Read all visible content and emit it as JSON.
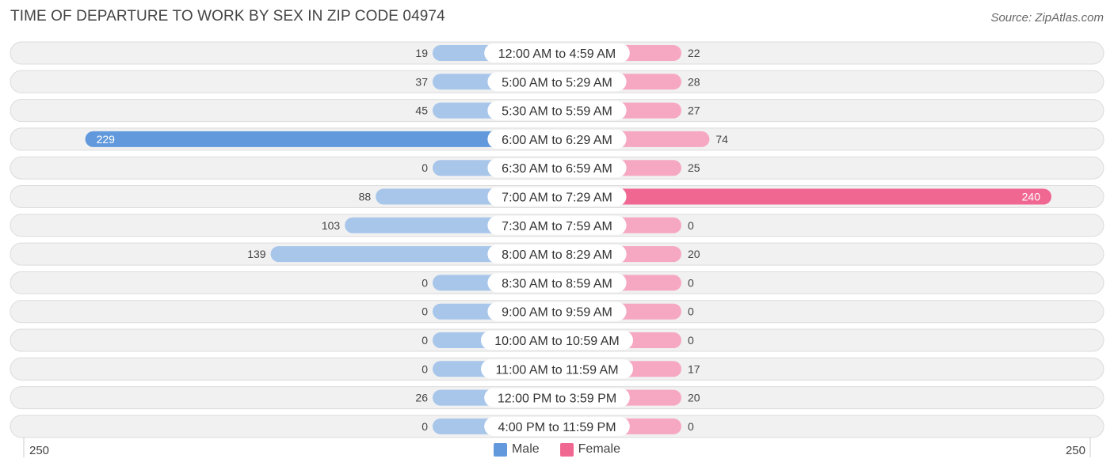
{
  "header": {
    "title": "TIME OF DEPARTURE TO WORK BY SEX IN ZIP CODE 04974",
    "source": "Source: ZipAtlas.com"
  },
  "legend": {
    "male_label": "Male",
    "female_label": "Female"
  },
  "axis": {
    "left_label": "250",
    "right_label": "250"
  },
  "colors": {
    "male_light": "#a7c6ea",
    "male_dark": "#6199dc",
    "female_light": "#f6a8c3",
    "female_dark": "#f06792",
    "row_bg": "#f1f1f1",
    "row_border": "#dcdcdc"
  },
  "chart_data": {
    "type": "bar",
    "orientation": "horizontal-diverging",
    "title": "TIME OF DEPARTURE TO WORK BY SEX IN ZIP CODE 04974",
    "xlim": [
      -250,
      250
    ],
    "categories": [
      "12:00 AM to 4:59 AM",
      "5:00 AM to 5:29 AM",
      "5:30 AM to 5:59 AM",
      "6:00 AM to 6:29 AM",
      "6:30 AM to 6:59 AM",
      "7:00 AM to 7:29 AM",
      "7:30 AM to 7:59 AM",
      "8:00 AM to 8:29 AM",
      "8:30 AM to 8:59 AM",
      "9:00 AM to 9:59 AM",
      "10:00 AM to 10:59 AM",
      "11:00 AM to 11:59 AM",
      "12:00 PM to 3:59 PM",
      "4:00 PM to 11:59 PM"
    ],
    "series": [
      {
        "name": "Male",
        "values": [
          19,
          37,
          45,
          229,
          0,
          88,
          103,
          139,
          0,
          0,
          0,
          0,
          26,
          0
        ]
      },
      {
        "name": "Female",
        "values": [
          22,
          28,
          27,
          74,
          25,
          240,
          0,
          20,
          0,
          0,
          0,
          17,
          20,
          0
        ]
      }
    ],
    "legend_position": "bottom-center"
  }
}
